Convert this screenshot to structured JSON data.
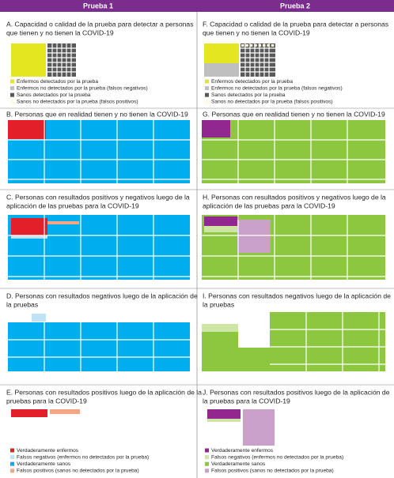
{
  "header": {
    "col1": "Prueba 1",
    "col2": "Prueba 2"
  },
  "panels": [
    {
      "title": [
        "A. Capacidad o calidad de la prueba para detectar a personas",
        "que tienen y no tienen la COVID-19"
      ]
    },
    {
      "title": [
        "B. Personas que en realidad tienen y no tienen la COVID-19"
      ]
    },
    {
      "title": [
        "C. Personas con resultados positivos y negativos luego de la",
        "aplicación de las pruebas para la COVID-19"
      ]
    },
    {
      "title": [
        "D. Personas con resultados negativos luego de la aplicación de",
        "la pruebas"
      ]
    },
    {
      "title": [
        "E. Personas con resultados positivos luego de la aplicación de la",
        "pruebas para la COVID-19"
      ]
    },
    {
      "title": [
        "F. Capacidad o calidad de la prueba para detectar a personas",
        "que tienen y no tienen la COVID-19"
      ]
    },
    {
      "title": [
        "G. Personas que en realidad tienen y no tienen la COVID-19"
      ]
    },
    {
      "title": [
        "H. Personas con resultados positivos y negativos luego de la",
        "aplicación de las pruebas para la COVID-19"
      ]
    },
    {
      "title": [
        "I. Personas con resultados negativos luego de la aplicación de",
        "la pruebas"
      ]
    },
    {
      "title": [
        "J. Personas con resultados positivos luego de la aplicación de",
        "la pruebas para la COVID-19"
      ]
    }
  ],
  "legend_a": [
    "Enfermos detectados por la prueba",
    "Enfermos no detectados por la prueba (falsos negativos)",
    "Sanos detectados por la prueba",
    "Sanos no detectados por la prueba (falsos positivos)"
  ],
  "legend_f": [
    "Enfermos detectados por la prueba",
    "Enfermos no detectados por la prueba (falsos negativos)",
    "Sanos detectados por la prueba",
    "Sanos no detectados por la prueba (falsos positivos)"
  ],
  "legend_e": [
    "Verdaderamente enfermos",
    "Falsos negativos (enfermos no detectados por la prueba)",
    "Verdaderamente sanos",
    "Falsos positivos (sanos no detectados por la prueba)"
  ],
  "legend_j": [
    "Verdaderamente enfermos",
    "Falsos negativos (enfermos no detectados por la prueba)",
    "Verdaderamente sanos",
    "Falsos positivos (sanos no detectados por la prueba)"
  ]
}
